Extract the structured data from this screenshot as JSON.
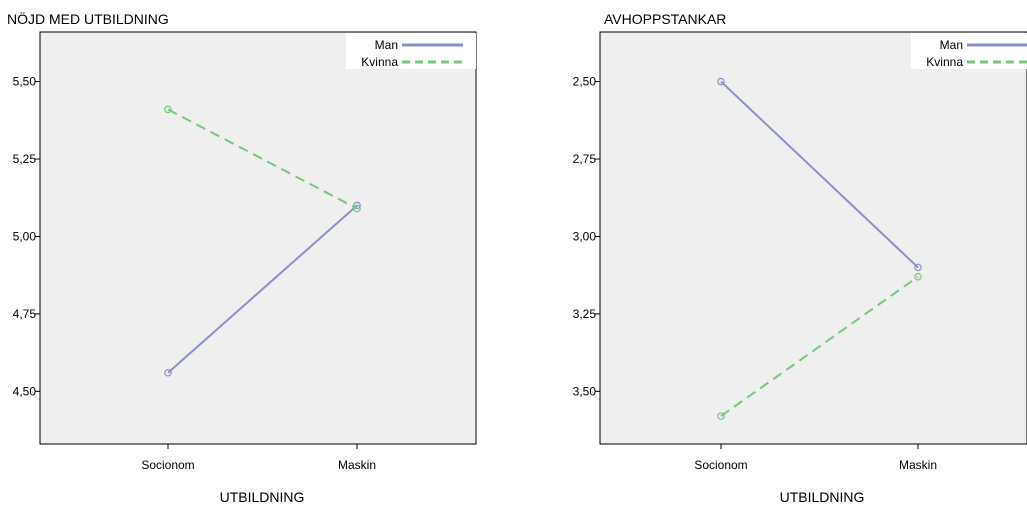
{
  "colors": {
    "man": "#8a8fcc",
    "kvinna": "#74c97a"
  },
  "chart_data": [
    {
      "type": "line",
      "title": "NÖJD MED UTBILDNING",
      "xlabel": "UTBILDNING",
      "categories": [
        "Socionom",
        "Maskin"
      ],
      "ylim": [
        4.33,
        5.66
      ],
      "y_inverted": false,
      "yticks": [
        4.5,
        4.75,
        5.0,
        5.25,
        5.5
      ],
      "ytick_labels": [
        "4,50",
        "4,75",
        "5,00",
        "5,25",
        "5,50"
      ],
      "legend_position": "top-right",
      "series": [
        {
          "name": "Man",
          "style": "solid",
          "color_key": "man",
          "values": [
            4.56,
            5.1
          ]
        },
        {
          "name": "Kvinna",
          "style": "dashed",
          "color_key": "kvinna",
          "values": [
            5.41,
            5.09
          ]
        }
      ]
    },
    {
      "type": "line",
      "title": "AVHOPPSTANKAR",
      "xlabel": "UTBILDNING",
      "categories": [
        "Socionom",
        "Maskin"
      ],
      "ylim": [
        2.34,
        3.67
      ],
      "y_inverted": true,
      "yticks": [
        2.5,
        2.75,
        3.0,
        3.25,
        3.5
      ],
      "ytick_labels": [
        "2,50",
        "2,75",
        "3,00",
        "3,25",
        "3,50"
      ],
      "legend_position": "top-right",
      "series": [
        {
          "name": "Man",
          "style": "solid",
          "color_key": "man",
          "values": [
            2.5,
            3.1
          ]
        },
        {
          "name": "Kvinna",
          "style": "dashed",
          "color_key": "kvinna",
          "values": [
            3.58,
            3.13
          ]
        }
      ]
    }
  ]
}
